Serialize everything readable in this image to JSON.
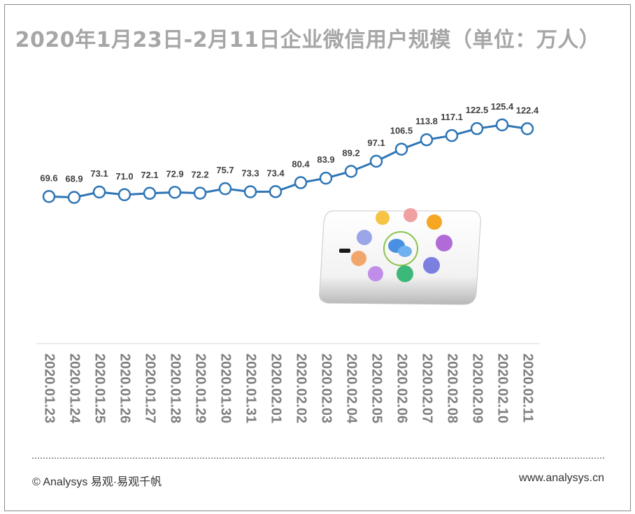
{
  "chart_data": {
    "type": "line",
    "title": "2020年1月23日-2月11日企业微信用户规模（单位：万人）",
    "categories": [
      "2020.01.23",
      "2020.01.24",
      "2020.01.25",
      "2020.01.26",
      "2020.01.27",
      "2020.01.28",
      "2020.01.29",
      "2020.01.30",
      "2020.01.31",
      "2020.02.01",
      "2020.02.02",
      "2020.02.03",
      "2020.02.04",
      "2020.02.05",
      "2020.02.06",
      "2020.02.07",
      "2020.02.08",
      "2020.02.09",
      "2020.02.10",
      "2020.02.11"
    ],
    "values": [
      69.6,
      68.9,
      73.1,
      71.0,
      72.1,
      72.9,
      72.2,
      75.7,
      73.3,
      73.4,
      80.4,
      83.9,
      89.2,
      97.1,
      106.5,
      113.8,
      117.1,
      122.5,
      125.4,
      122.4
    ],
    "data_labels": [
      "69.6",
      "68.9",
      "73.1",
      "71.0",
      "72.1",
      "72.9",
      "72.2",
      "75.7",
      "73.3",
      "73.4",
      "80.4",
      "83.9",
      "89.2",
      "97.1",
      "106.5",
      "113.8",
      "117.1",
      "122.5",
      "125.4",
      "122.4"
    ],
    "ylim": [
      -45,
      140
    ],
    "grid": false,
    "legend": "none",
    "colors": {
      "line": "#2e75b6",
      "marker_fill": "#ffffff",
      "label": "#404040",
      "title": "#a6a6a6",
      "tick": "#7f7f7f"
    }
  },
  "footer": {
    "copyright": "© Analysys 易观·易观千帆",
    "url": "www.analysys.cn"
  },
  "illustration": {
    "icon": "wechat-work-app-icons-phone"
  }
}
